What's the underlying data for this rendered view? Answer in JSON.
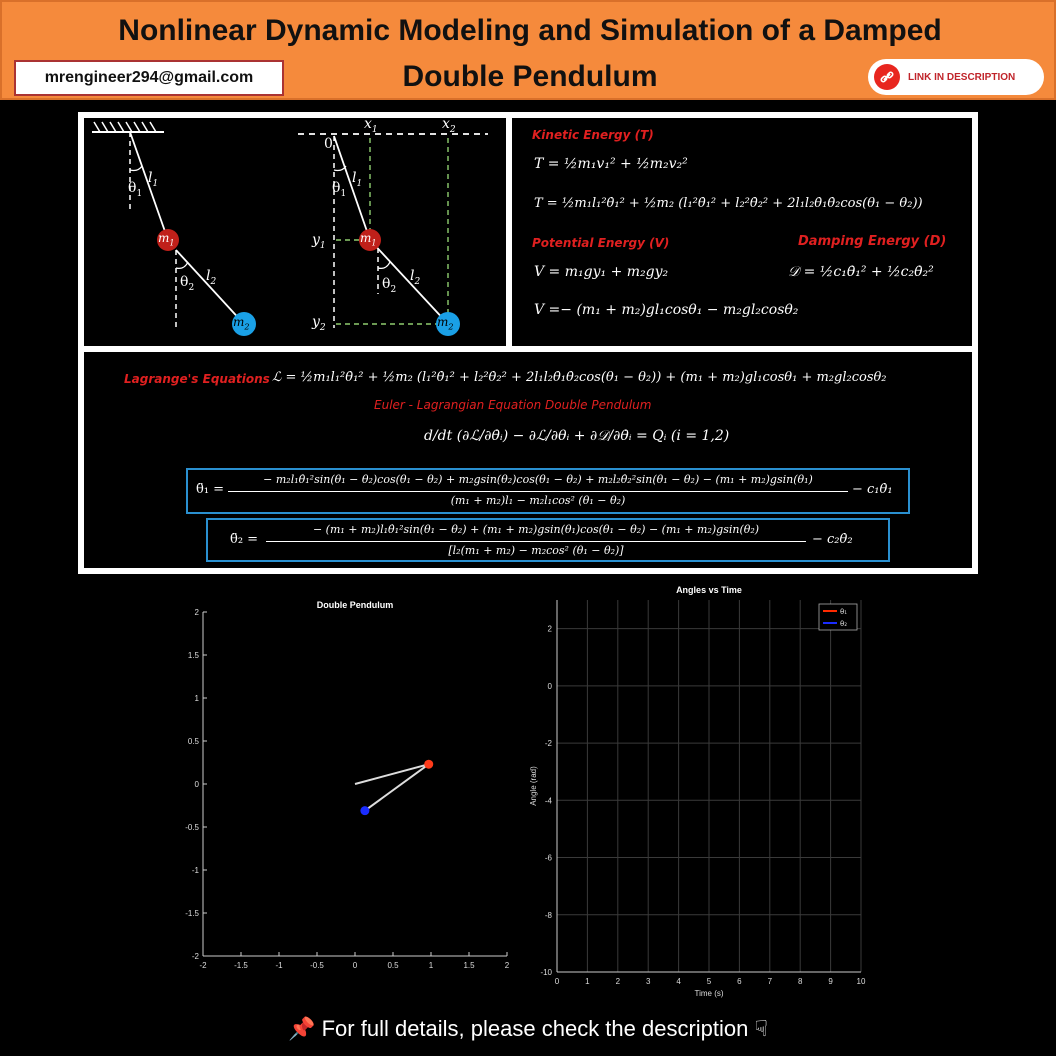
{
  "header": {
    "title_line1": "Nonlinear Dynamic Modeling and Simulation of a Damped",
    "title_line2": "Double Pendulum",
    "email": "mrengineer294@gmail.com",
    "link_label": "LINK IN DESCRIPTION",
    "bg_color": "#f58a3c",
    "link_color": "#e8261f"
  },
  "diagram": {
    "labels": {
      "l1": "l",
      "l1_sub": "1",
      "l2": "l",
      "l2_sub": "2",
      "theta1": "θ",
      "theta1_sub": "1",
      "theta2": "θ",
      "theta2_sub": "2",
      "m1": "m",
      "m1_sub": "1",
      "m2": "m",
      "m2_sub": "2",
      "x1": "x",
      "x1_sub": "1",
      "x2": "x",
      "x2_sub": "2",
      "y1": "y",
      "y1_sub": "1",
      "y2": "y",
      "y2_sub": "2",
      "origin": "0"
    },
    "m1_color": "#c0201a",
    "m2_color": "#1aa0e6"
  },
  "energy": {
    "kinetic_label": "Kinetic Energy (T)",
    "kinetic_eq1": "T = ½m₁v₁² + ½m₂v₂²",
    "kinetic_eq2": "T = ½m₁l₁²θ̇₁² + ½m₂ (l₁²θ̇₁² + l₂²θ̇₂² + 2l₁l₂θ̇₁θ̇₂cos(θ₁ − θ₂))",
    "potential_label": "Potential Energy (V)",
    "potential_eq1": "V = m₁gy₁ + m₂gy₂",
    "potential_eq2": "V =− (m₁ + m₂)gl₁cosθ₁ − m₂gl₂cosθ₂",
    "damping_label": "Damping Energy (D)",
    "damping_eq": "𝒟 = ½c₁θ̇₁² + ½c₂θ̇₂²"
  },
  "lagrange": {
    "label": "Lagrange's Equations",
    "lagrangian_eq": "ℒ = ½m₁l₁²θ̇₁² + ½m₂ (l₁²θ̇₁² + l₂²θ̇₂² + 2l₁l₂θ̇₁θ̇₂cos(θ₁ − θ₂)) + (m₁ + m₂)gl₁cosθ₁ + m₂gl₂cosθ₂",
    "euler_label": "Euler - Lagrangian Equation Double Pendulum",
    "euler_eq": "d/dt (∂ℒ/∂θ̇ᵢ) − ∂ℒ/∂θᵢ + ∂𝒟/∂θ̇ᵢ = Qᵢ        (i = 1,2)",
    "theta1_lhs": "θ̈₁ =",
    "theta1_num": "− m₂l₁θ̇₁²sin(θ₁ − θ₂)cos(θ₁ − θ₂) + m₂gsin(θ₂)cos(θ₁ − θ₂) + m₂l₂θ̇₂²sin(θ₁ − θ₂) − (m₁ + m₂)gsin(θ₁)",
    "theta1_den": "(m₁ + m₂)l₁ − m₂l₁cos² (θ₁ − θ₂)",
    "theta1_tail": "− c₁θ̇₁",
    "theta2_lhs": "θ̈₂ =",
    "theta2_num": "− (m₁ + m₂)l₁θ̇₁²sin(θ₁ − θ₂) + (m₁ + m₂)gsin(θ₁)cos(θ₁ − θ₂) − (m₁ + m₂)gsin(θ₂)",
    "theta2_den": "[l₂(m₁ + m₂) − m₂cos² (θ₁ − θ₂)]",
    "theta2_tail": "− c₂θ̇₂",
    "box_color": "#2a90d0"
  },
  "chart_data": [
    {
      "type": "scatter",
      "title": "Double Pendulum",
      "xlabel": "",
      "ylabel": "",
      "xlim": [
        -2,
        2
      ],
      "ylim": [
        -2,
        2
      ],
      "x_ticks": [
        "-2",
        "-1.5",
        "-1",
        "-0.5",
        "0",
        "0.5",
        "1",
        "1.5",
        "2"
      ],
      "y_ticks": [
        "2",
        "1.5",
        "1",
        "0.5",
        "0",
        "-0.5",
        "-1",
        "-1.5",
        "-2"
      ],
      "grid": false,
      "rod_points": [
        {
          "x": 0,
          "y": 0
        },
        {
          "x": 0.97,
          "y": 0.23
        },
        {
          "x": 0.13,
          "y": -0.31
        }
      ],
      "bob1": {
        "x": 0.97,
        "y": 0.23,
        "color": "#ff3b1a"
      },
      "bob2": {
        "x": 0.13,
        "y": -0.31,
        "color": "#1a2cff"
      }
    },
    {
      "type": "line",
      "title": "Angles vs Time",
      "xlabel": "Time (s)",
      "ylabel": "Angle (rad)",
      "xlim": [
        0,
        10
      ],
      "ylim": [
        -10,
        3
      ],
      "x_ticks": [
        "0",
        "1",
        "2",
        "3",
        "4",
        "5",
        "6",
        "7",
        "8",
        "9",
        "10"
      ],
      "y_ticks": [
        "2",
        "0",
        "-2",
        "-4",
        "-6",
        "-8",
        "-10"
      ],
      "grid": true,
      "legend_position": "top-right",
      "series": [
        {
          "name": "θ₁",
          "color": "#ff2a00",
          "values": []
        },
        {
          "name": "θ₂",
          "color": "#1a2cff",
          "values": []
        }
      ]
    }
  ],
  "footer": {
    "pin_icon": "📌",
    "text": "For full details, please check the description",
    "hand_icon": "☟"
  }
}
